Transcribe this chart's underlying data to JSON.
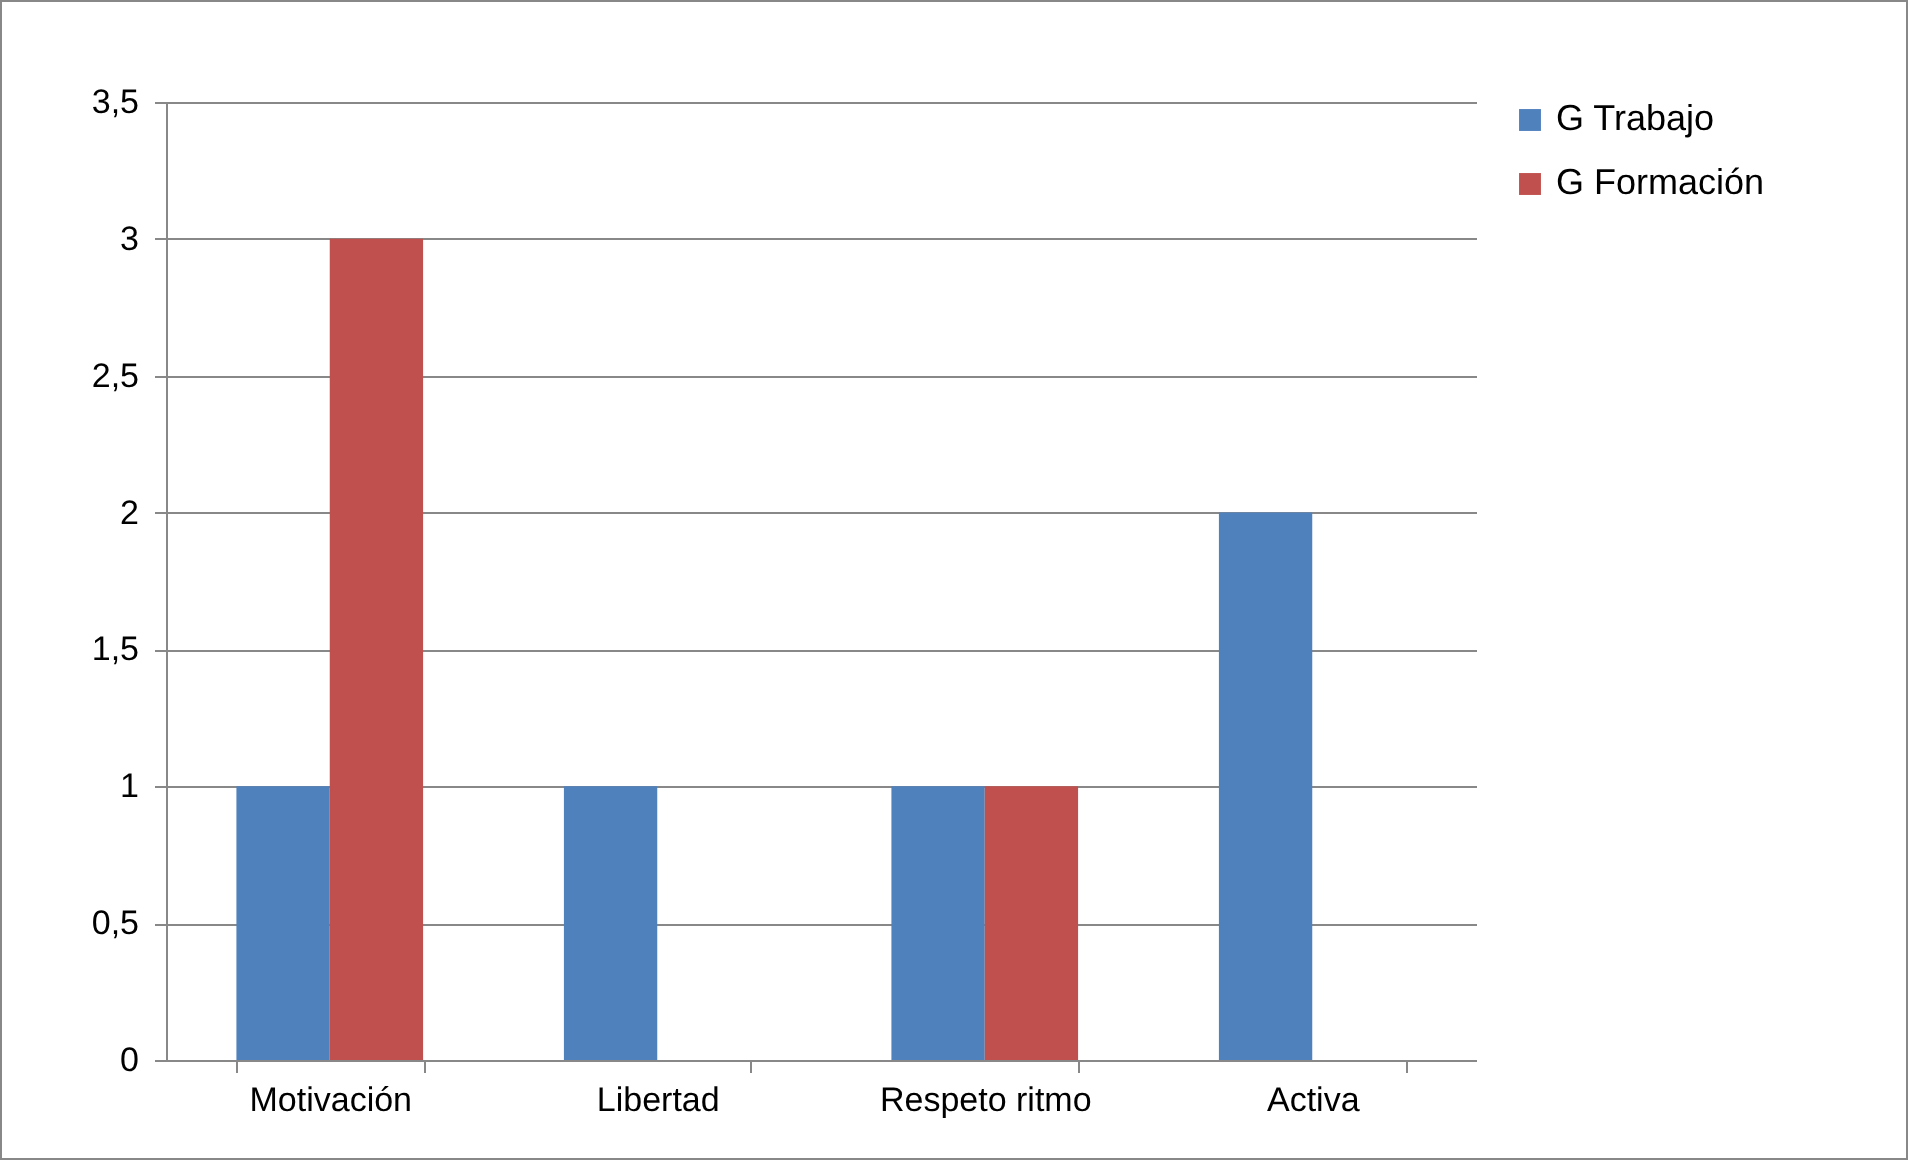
{
  "chart_data": {
    "type": "bar",
    "categories": [
      "Motivación",
      "Libertad",
      "Respeto ritmo",
      "Activa"
    ],
    "series": [
      {
        "name": "G Trabajo",
        "color": "#4f81bd",
        "values": [
          1,
          1,
          1,
          2
        ]
      },
      {
        "name": "G Formación",
        "color": "#c0504d",
        "values": [
          3,
          0,
          1,
          0
        ]
      }
    ],
    "ylim": [
      0,
      3.5
    ],
    "yticks": [
      0,
      {
        "value": 0.5,
        "label": "0,5"
      },
      1,
      {
        "value": 1.5,
        "label": "1,5"
      },
      2,
      {
        "value": 2.5,
        "label": "2,5"
      },
      3,
      {
        "value": 3.5,
        "label": "3,5"
      }
    ],
    "grid": "y",
    "legend": "right"
  }
}
